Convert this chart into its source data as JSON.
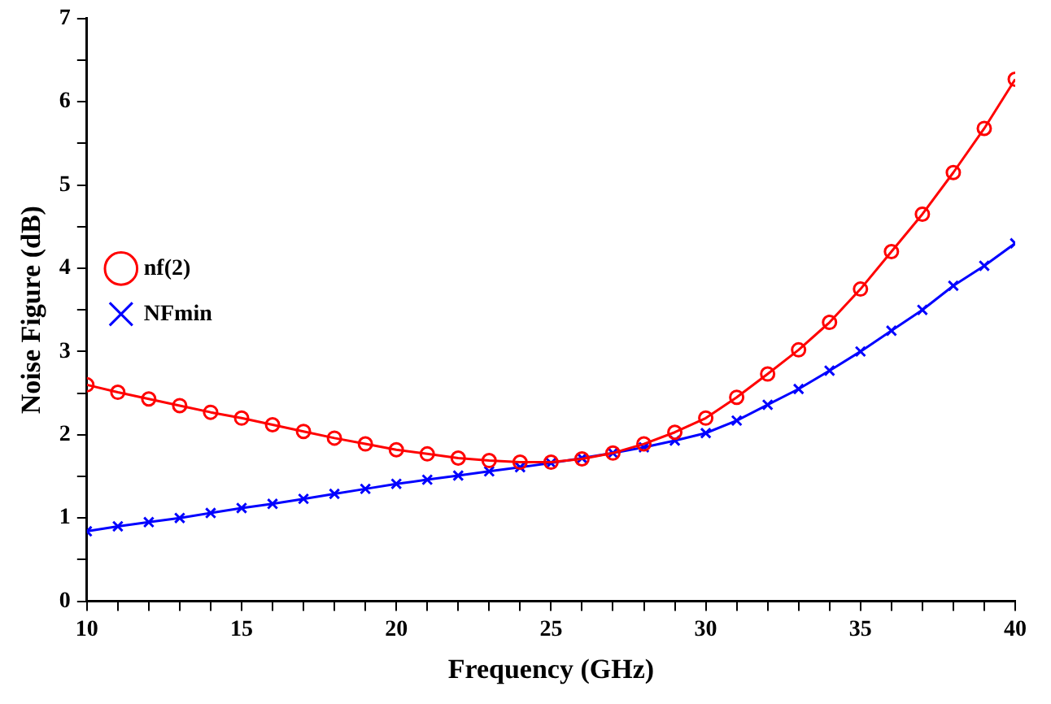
{
  "chart_data": {
    "type": "line",
    "xlabel": "Frequency (GHz)",
    "ylabel": "Noise Figure (dB)",
    "x": [
      10,
      11,
      12,
      13,
      14,
      15,
      16,
      17,
      18,
      19,
      20,
      21,
      22,
      23,
      24,
      25,
      26,
      27,
      28,
      29,
      30,
      31,
      32,
      33,
      34,
      35,
      36,
      37,
      38,
      39,
      40
    ],
    "series": [
      {
        "name": "nf(2)",
        "color": "#ff0000",
        "marker": "circle",
        "values": [
          2.6,
          2.51,
          2.43,
          2.35,
          2.27,
          2.2,
          2.12,
          2.04,
          1.96,
          1.89,
          1.82,
          1.77,
          1.72,
          1.69,
          1.67,
          1.67,
          1.71,
          1.78,
          1.89,
          2.03,
          2.2,
          2.45,
          2.73,
          3.02,
          3.35,
          3.75,
          4.2,
          4.65,
          5.15,
          5.68,
          6.27
        ]
      },
      {
        "name": "NFmin",
        "color": "#0000ff",
        "marker": "cross",
        "values": [
          0.84,
          0.9,
          0.95,
          1.0,
          1.06,
          1.12,
          1.17,
          1.23,
          1.29,
          1.35,
          1.41,
          1.46,
          1.51,
          1.56,
          1.61,
          1.66,
          1.72,
          1.78,
          1.85,
          1.93,
          2.02,
          2.17,
          2.36,
          2.55,
          2.77,
          3.0,
          3.25,
          3.5,
          3.79,
          4.03,
          4.3
        ]
      }
    ],
    "xlim": [
      10,
      40
    ],
    "xticks": [
      10,
      {
        "value": 11,
        "label": null
      },
      {
        "value": 12,
        "label": null
      },
      {
        "value": 13,
        "label": null
      },
      {
        "value": 14,
        "label": null
      },
      15,
      {
        "value": 16,
        "label": null
      },
      {
        "value": 17,
        "label": null
      },
      {
        "value": 18,
        "label": null
      },
      {
        "value": 19,
        "label": null
      },
      20,
      {
        "value": 21,
        "label": null
      },
      {
        "value": 22,
        "label": null
      },
      {
        "value": 23,
        "label": null
      },
      {
        "value": 24,
        "label": null
      },
      25,
      {
        "value": 26,
        "label": null
      },
      {
        "value": 27,
        "label": null
      },
      {
        "value": 28,
        "label": null
      },
      {
        "value": 29,
        "label": null
      },
      30,
      {
        "value": 31,
        "label": null
      },
      {
        "value": 32,
        "label": null
      },
      {
        "value": 33,
        "label": null
      },
      {
        "value": 34,
        "label": null
      },
      35,
      {
        "value": 36,
        "label": null
      },
      {
        "value": 37,
        "label": null
      },
      {
        "value": 38,
        "label": null
      },
      {
        "value": 39,
        "label": null
      },
      40
    ],
    "ylim": [
      0,
      7
    ],
    "yticks": [
      0,
      {
        "value": 0.5,
        "label": null
      },
      1,
      {
        "value": 1.5,
        "label": null
      },
      2,
      {
        "value": 2.5,
        "label": null
      },
      3,
      {
        "value": 3.5,
        "label": null
      },
      4,
      {
        "value": 4.5,
        "label": null
      },
      5,
      {
        "value": 5.5,
        "label": null
      },
      6,
      {
        "value": 6.5,
        "label": null
      },
      7
    ],
    "grid": false,
    "legend": "top",
    "line_style": "solid"
  }
}
